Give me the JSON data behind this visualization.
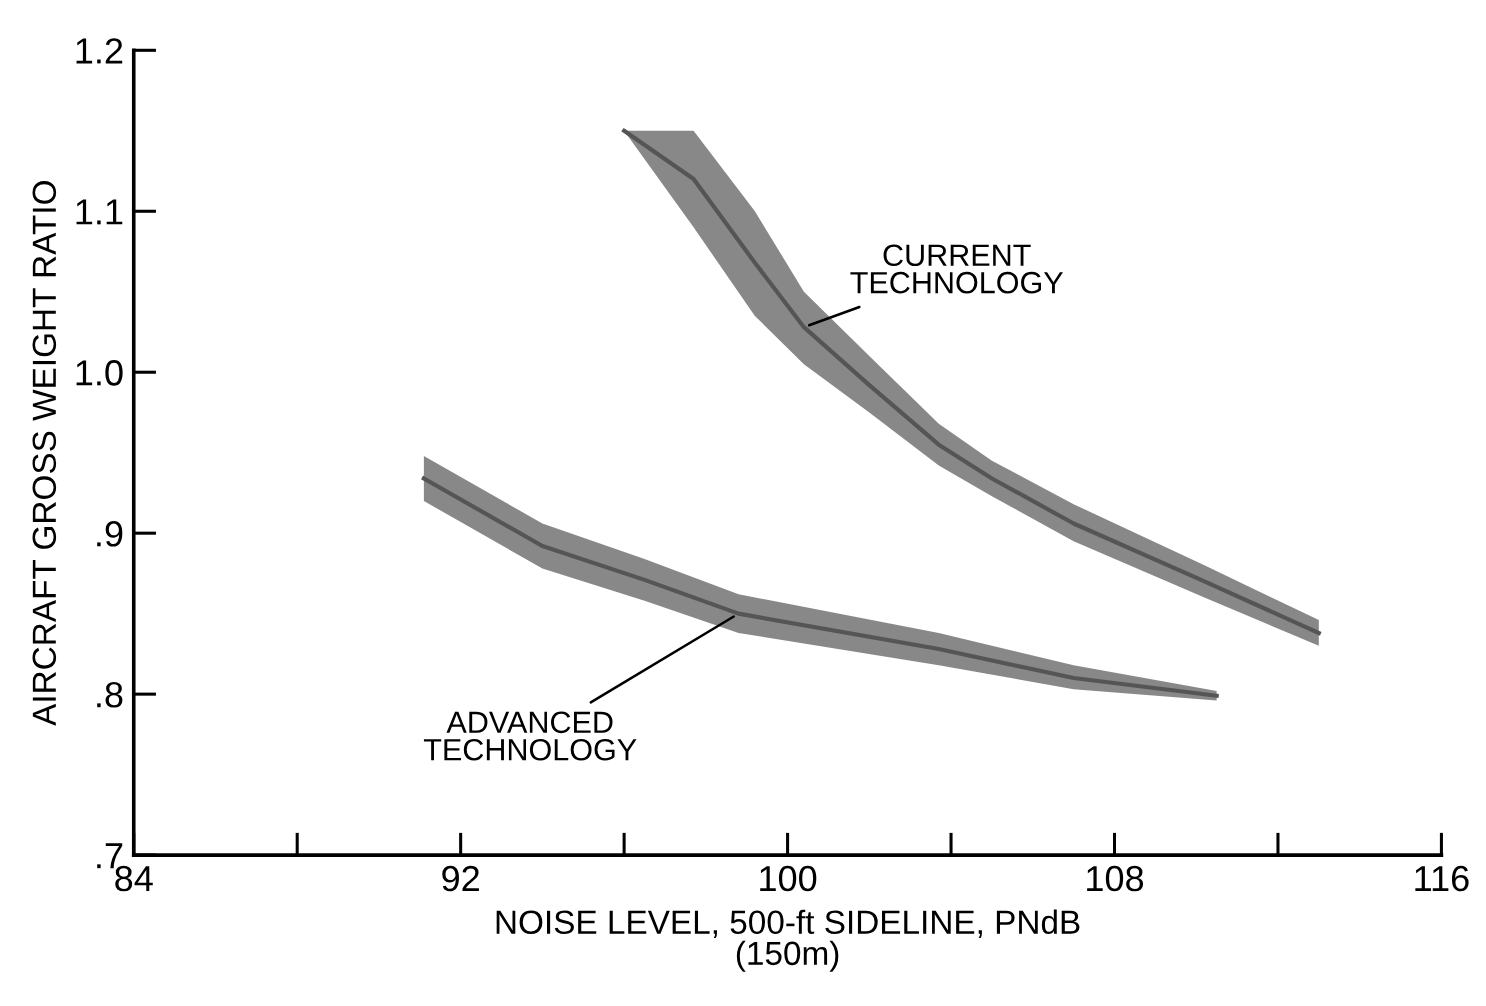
{
  "chart_data": {
    "type": "line",
    "xlabel": "NOISE LEVEL, 500-ft SIDELINE, PNdB\n(150m)",
    "ylabel": "AIRCRAFT GROSS WEIGHT RATIO",
    "xlim": [
      84,
      116
    ],
    "xticks": [
      84,
      {
        "value": 88,
        "label": null
      },
      92,
      {
        "value": 96,
        "label": null
      },
      100,
      {
        "value": 104,
        "label": null
      },
      108,
      {
        "value": 112,
        "label": null
      },
      116
    ],
    "ylim": [
      0.7,
      1.2
    ],
    "yticks": [
      {
        "value": 0.7,
        "label": ".7"
      },
      {
        "value": 0.8,
        "label": ".8"
      },
      {
        "value": 0.9,
        "label": ".9"
      },
      {
        "value": 1.0,
        "label": "1.0"
      },
      {
        "value": 1.1,
        "label": "1.1"
      },
      {
        "value": 1.2,
        "label": "1.2"
      }
    ],
    "grid": false,
    "legend": false,
    "series": [
      {
        "name": "CURRENT\nTECHNOLOGY",
        "color": "#555555",
        "x": [
          96.0,
          97.7,
          99.2,
          100.4,
          102,
          103.7,
          105,
          107,
          110.2,
          113
        ],
        "values": [
          1.15,
          1.12,
          1.068,
          1.028,
          0.992,
          0.955,
          0.934,
          0.906,
          0.87,
          0.838
        ],
        "lower": [
          1.15,
          1.09,
          1.035,
          1.005,
          0.975,
          0.942,
          0.923,
          0.895,
          0.86,
          0.83
        ],
        "upper": [
          1.15,
          1.15,
          1.1,
          1.05,
          1.01,
          0.968,
          0.945,
          0.918,
          0.88,
          0.846
        ]
      },
      {
        "name": "ADVANCED\nTECHNOLOGY",
        "color": "#555555",
        "x": [
          91.1,
          94,
          96.5,
          98.8,
          103.7,
          107,
          110.5
        ],
        "values": [
          0.934,
          0.892,
          0.871,
          0.85,
          0.828,
          0.81,
          0.799
        ],
        "lower": [
          0.92,
          0.878,
          0.858,
          0.838,
          0.818,
          0.803,
          0.796
        ],
        "upper": [
          0.948,
          0.906,
          0.884,
          0.862,
          0.838,
          0.818,
          0.802
        ]
      }
    ]
  }
}
